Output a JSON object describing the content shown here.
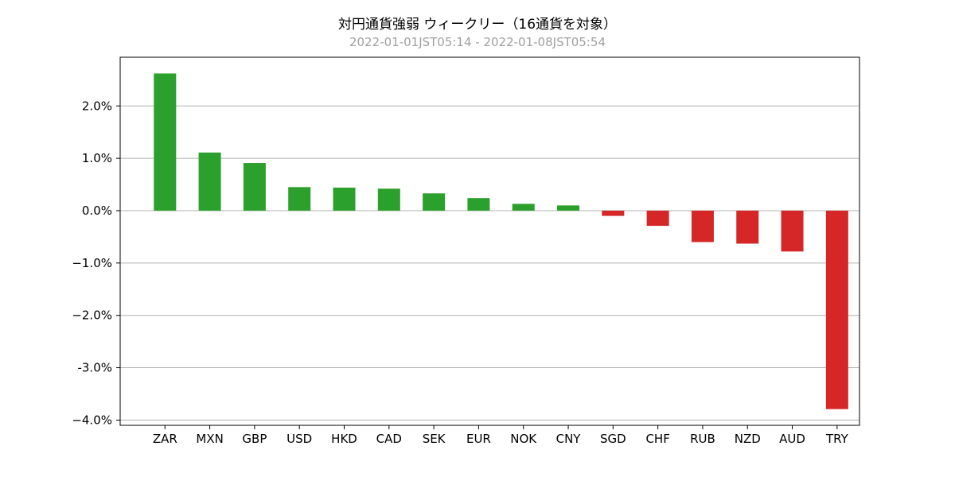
{
  "chart_data": {
    "type": "bar",
    "title": "対円通貨強弱 ウィークリー（16通貨を対象）",
    "subtitle": "2022-01-01JST05:14 - 2022-01-08JST05:54",
    "xlabel": "",
    "ylabel": "",
    "categories": [
      "ZAR",
      "MXN",
      "GBP",
      "USD",
      "HKD",
      "CAD",
      "SEK",
      "EUR",
      "NOK",
      "CNY",
      "SGD",
      "CHF",
      "RUB",
      "NZD",
      "AUD",
      "TRY"
    ],
    "values": [
      2.62,
      1.11,
      0.91,
      0.45,
      0.44,
      0.42,
      0.33,
      0.24,
      0.13,
      0.1,
      -0.1,
      -0.29,
      -0.6,
      -0.63,
      -0.78,
      -3.79
    ],
    "ylim": [
      -4.1,
      2.93
    ],
    "yticks": [
      2.0,
      1.0,
      0.0,
      -1.0,
      -2.0,
      -3.0,
      -4.0
    ],
    "ytick_labels": [
      "2.0%",
      "1.0%",
      "0.0%",
      "−1.0%",
      "−2.0%",
      "-3.0%",
      "−4.0%"
    ],
    "grid": "horizontal",
    "colors": {
      "positive": "#2ca02c",
      "negative": "#d62728",
      "grid": "#b0b0b0",
      "axes": "#000000"
    }
  }
}
